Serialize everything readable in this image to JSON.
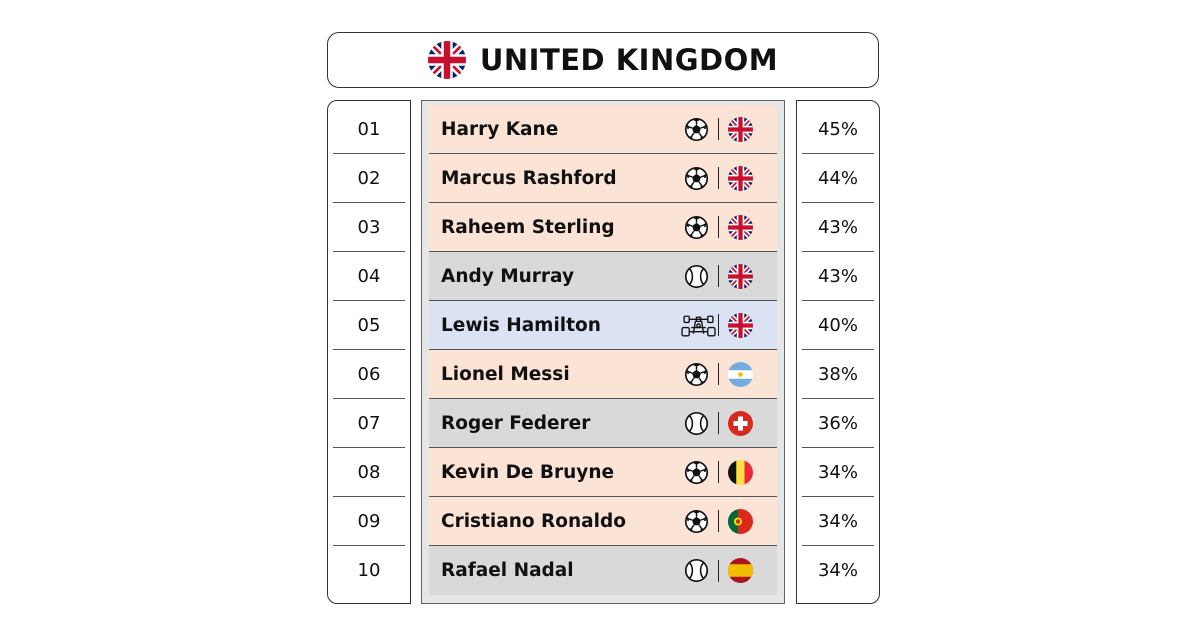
{
  "title": "UNITED KINGDOM",
  "colors": {
    "football": "#fbe3d5",
    "tennis": "#d9d9d9",
    "motorsport": "#dae2f4"
  },
  "chart_data": {
    "type": "table",
    "columns": [
      "rank",
      "name",
      "sport",
      "country",
      "percent"
    ],
    "rows": [
      {
        "rank": "01",
        "name": "Harry Kane",
        "sport": "football-icon",
        "country": "uk-flag-icon",
        "percent": "45%"
      },
      {
        "rank": "02",
        "name": "Marcus Rashford",
        "sport": "football-icon",
        "country": "uk-flag-icon",
        "percent": "44%"
      },
      {
        "rank": "03",
        "name": "Raheem Sterling",
        "sport": "football-icon",
        "country": "uk-flag-icon",
        "percent": "43%"
      },
      {
        "rank": "04",
        "name": "Andy Murray",
        "sport": "tennis-ball-icon",
        "country": "uk-flag-icon",
        "percent": "43%"
      },
      {
        "rank": "05",
        "name": "Lewis Hamilton",
        "sport": "f1-car-icon",
        "country": "uk-flag-icon",
        "percent": "40%"
      },
      {
        "rank": "06",
        "name": "Lionel Messi",
        "sport": "football-icon",
        "country": "argentina-flag-icon",
        "percent": "38%"
      },
      {
        "rank": "07",
        "name": "Roger Federer",
        "sport": "tennis-ball-icon",
        "country": "switzerland-flag-icon",
        "percent": "36%"
      },
      {
        "rank": "08",
        "name": "Kevin De Bruyne",
        "sport": "football-icon",
        "country": "belgium-flag-icon",
        "percent": "34%"
      },
      {
        "rank": "09",
        "name": "Cristiano Ronaldo",
        "sport": "football-icon",
        "country": "portugal-flag-icon",
        "percent": "34%"
      },
      {
        "rank": "10",
        "name": "Rafael Nadal",
        "sport": "tennis-ball-icon",
        "country": "spain-flag-icon",
        "percent": "34%"
      }
    ]
  }
}
